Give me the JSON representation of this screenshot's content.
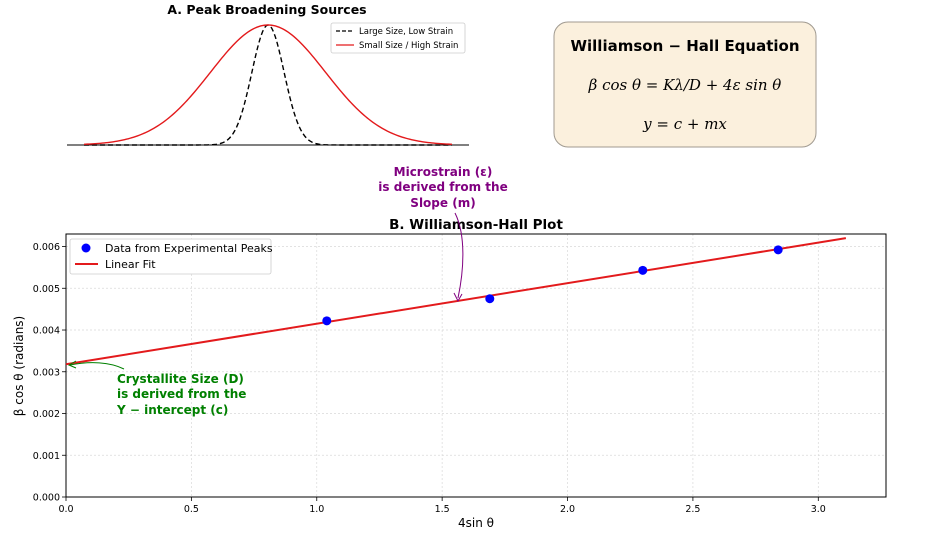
{
  "chart_data": [
    {
      "type": "line",
      "title": "A. Peak Broadening Sources",
      "xlabel": "",
      "ylabel": "",
      "axes_visible": false,
      "series": [
        {
          "name": "Large Size, Low Strain",
          "shape": "gaussian",
          "center": 0.8,
          "sigma": 0.07,
          "color": "#000000",
          "style": "dashed"
        },
        {
          "name": "Small Size / High Strain",
          "shape": "gaussian",
          "center": 0.8,
          "sigma": 0.25,
          "color": "#e31a1c",
          "style": "solid"
        }
      ],
      "xlim": [
        0,
        1.6
      ],
      "ylim": [
        0,
        1
      ],
      "legend": "top-right"
    },
    {
      "type": "scatter",
      "title": "B. Williamson-Hall Plot",
      "xlabel": "4sin θ",
      "ylabel": "β cos θ (radians)",
      "xlim": [
        0,
        3.27
      ],
      "ylim": [
        0,
        0.0063
      ],
      "xticks": [
        "0.0",
        "0.5",
        "1.0",
        "1.5",
        "2.0",
        "2.5",
        "3.0"
      ],
      "yticks": [
        "0.000",
        "0.001",
        "0.002",
        "0.003",
        "0.004",
        "0.005",
        "0.006"
      ],
      "grid": true,
      "legend": "top-left",
      "series": [
        {
          "name": "Data from Experimental Peaks",
          "color": "#0000ff",
          "points": [
            [
              1.04,
              0.00422
            ],
            [
              1.69,
              0.00475
            ],
            [
              2.3,
              0.00543
            ],
            [
              2.84,
              0.00592
            ]
          ]
        },
        {
          "name": "Linear Fit",
          "color": "#e31a1c",
          "style": "line",
          "points": [
            [
              0.0,
              0.00318
            ],
            [
              3.11,
              0.0062
            ]
          ]
        }
      ]
    }
  ],
  "equation_box": {
    "title": "Williamson − Hall Equation",
    "line1": "β cos θ = Kλ/D + 4ε sin θ",
    "line2": "y = c + mx"
  },
  "annotations": {
    "microstrain": [
      "Microstrain (ε)",
      "is derived from the",
      "Slope (m)"
    ],
    "crystallite": [
      "Crystallite Size (D)",
      "is derived from the",
      "Y − intercept (c)"
    ]
  },
  "colors": {
    "purple": "#800080",
    "green": "#008000",
    "box_fill": "#fbf0dd",
    "box_stroke": "#a09a90"
  }
}
